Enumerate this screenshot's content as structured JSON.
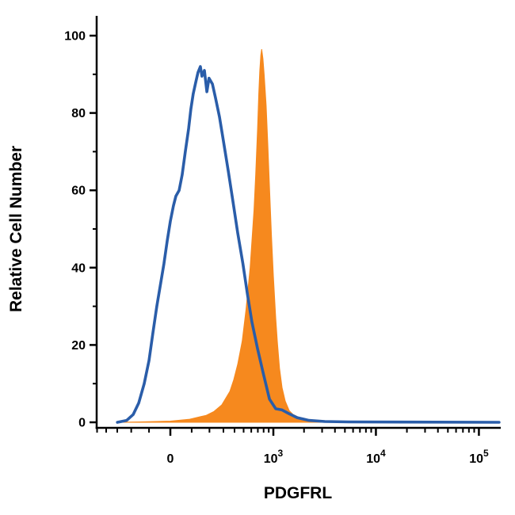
{
  "figure": {
    "background": "#ffffff"
  },
  "chart_data": {
    "type": "area",
    "subtype": "flow-cytometry-histogram-overlay",
    "title": "",
    "xlabel": "PDGFRL",
    "ylabel": "Relative Cell Number",
    "grid": false,
    "legend": false,
    "colors": {
      "blue": "#2A5DA9",
      "orange": "#F6891E",
      "axis": "#000000"
    },
    "y_axis": {
      "min": 0,
      "max": 100,
      "major": [
        0,
        20,
        40,
        60,
        80,
        100
      ],
      "minor": [
        10,
        30,
        50,
        70,
        90
      ]
    },
    "x_axis": {
      "scale": "biexponential",
      "major": [
        {
          "value": 0,
          "label": "0"
        },
        {
          "value": 1000,
          "label": "10^3",
          "base": "10",
          "exp": "3"
        },
        {
          "value": 10000,
          "label": "10^4",
          "base": "10",
          "exp": "4"
        },
        {
          "value": 100000,
          "label": "10^5",
          "base": "10",
          "exp": "5"
        }
      ],
      "minor": [
        -500,
        -400,
        -300,
        -200,
        -100,
        100,
        200,
        300,
        400,
        500,
        600,
        700,
        800,
        900,
        2000,
        3000,
        4000,
        5000,
        6000,
        7000,
        8000,
        9000,
        20000,
        30000,
        40000,
        50000,
        60000,
        70000,
        80000,
        90000,
        200000,
        300000,
        400000,
        500000
      ]
    },
    "series": [
      {
        "name": "orange-filled-histogram",
        "style": "filled",
        "color": "#F6891E",
        "points": [
          [
            -300,
            0
          ],
          [
            -150,
            0.1
          ],
          [
            0,
            0.3
          ],
          [
            90,
            0.8
          ],
          [
            180,
            1.8
          ],
          [
            230,
            2.8
          ],
          [
            287,
            4.5
          ],
          [
            355,
            8
          ],
          [
            392,
            11
          ],
          [
            433,
            15
          ],
          [
            483,
            21
          ],
          [
            529,
            29
          ],
          [
            584,
            40
          ],
          [
            640,
            55
          ],
          [
            665,
            64
          ],
          [
            696,
            76
          ],
          [
            715,
            85
          ],
          [
            733,
            91
          ],
          [
            750,
            95
          ],
          [
            765,
            96.5
          ],
          [
            788,
            94
          ],
          [
            810,
            90
          ],
          [
            848,
            82
          ],
          [
            880,
            72
          ],
          [
            915,
            61
          ],
          [
            960,
            48
          ],
          [
            1000,
            38
          ],
          [
            1056,
            27
          ],
          [
            1095,
            21
          ],
          [
            1150,
            14
          ],
          [
            1220,
            9
          ],
          [
            1310,
            5.5
          ],
          [
            1434,
            3
          ],
          [
            1566,
            2
          ],
          [
            1806,
            1.2
          ],
          [
            2238,
            0.6
          ],
          [
            2923,
            0.3
          ],
          [
            3812,
            0.1
          ],
          [
            5434,
            0
          ],
          [
            157000,
            0
          ]
        ]
      },
      {
        "name": "blue-outline-histogram",
        "style": "outline",
        "color": "#2A5DA9",
        "stroke_width": 3.6,
        "points": [
          [
            -299,
            0
          ],
          [
            -230,
            0.5
          ],
          [
            -188,
            2
          ],
          [
            -155,
            5
          ],
          [
            -125,
            10
          ],
          [
            -100,
            16
          ],
          [
            -81,
            23
          ],
          [
            -62,
            30
          ],
          [
            -47,
            35
          ],
          [
            -29,
            41
          ],
          [
            -14,
            47
          ],
          [
            0,
            52
          ],
          [
            14,
            56
          ],
          [
            25,
            58.5
          ],
          [
            40,
            60
          ],
          [
            54,
            64
          ],
          [
            69,
            70
          ],
          [
            85,
            76
          ],
          [
            96,
            81
          ],
          [
            108,
            85
          ],
          [
            121,
            88
          ],
          [
            133,
            90.5
          ],
          [
            146,
            92
          ],
          [
            155,
            89.5
          ],
          [
            169,
            91
          ],
          [
            184,
            85.5
          ],
          [
            197,
            89
          ],
          [
            219,
            87.5
          ],
          [
            240,
            84
          ],
          [
            269,
            79
          ],
          [
            299,
            73
          ],
          [
            341,
            65
          ],
          [
            385,
            57
          ],
          [
            433,
            49
          ],
          [
            492,
            41
          ],
          [
            549,
            33
          ],
          [
            609,
            26
          ],
          [
            696,
            19
          ],
          [
            788,
            13
          ],
          [
            915,
            6
          ],
          [
            1056,
            3.5
          ],
          [
            1220,
            3.2
          ],
          [
            1434,
            2.2
          ],
          [
            1713,
            1.2
          ],
          [
            2238,
            0.5
          ],
          [
            3192,
            0.2
          ],
          [
            5434,
            0.1
          ],
          [
            157000,
            0
          ]
        ]
      }
    ]
  }
}
